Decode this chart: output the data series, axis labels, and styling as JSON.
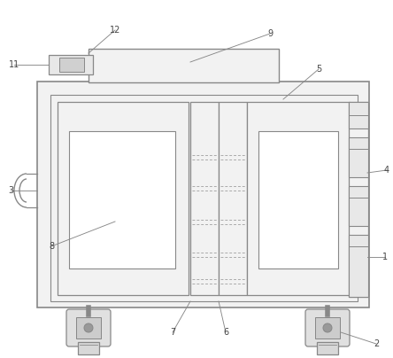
{
  "bg_color": "#ffffff",
  "line_color": "#888888",
  "fill_light": "#f2f2f2",
  "fill_white": "#ffffff",
  "fill_mid": "#e8e8e8",
  "dashed_color": "#aaaaaa",
  "label_color": "#444444",
  "figsize": [
    4.44,
    4.04
  ],
  "dpi": 100
}
